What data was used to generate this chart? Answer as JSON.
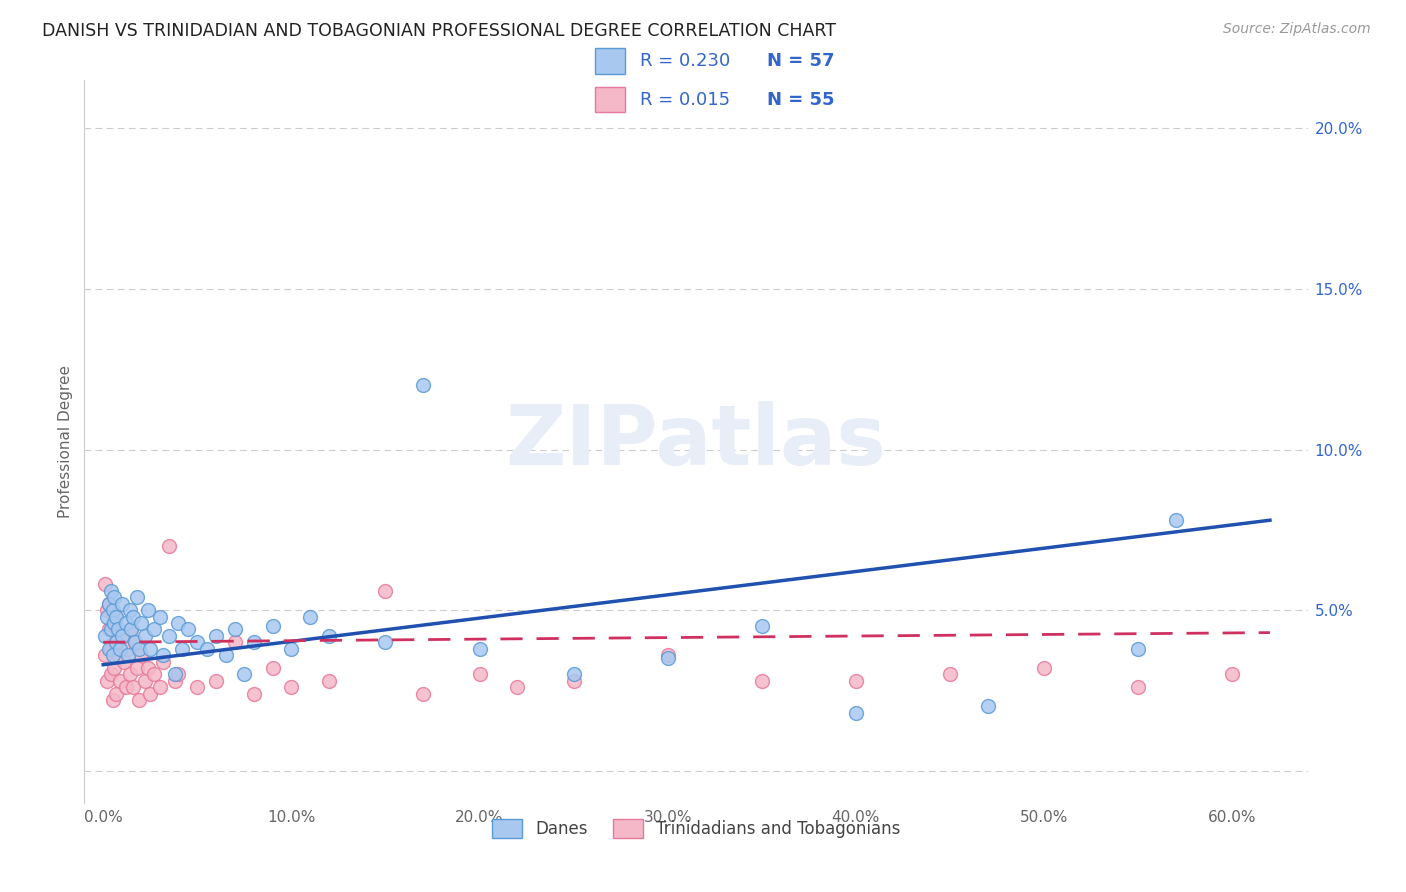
{
  "title": "DANISH VS TRINIDADIAN AND TOBAGONIAN PROFESSIONAL DEGREE CORRELATION CHART",
  "source": "Source: ZipAtlas.com",
  "ylabel": "Professional Degree",
  "x_ticks": [
    0.0,
    0.1,
    0.2,
    0.3,
    0.4,
    0.5,
    0.6
  ],
  "x_tick_labels": [
    "0.0%",
    "10.0%",
    "20.0%",
    "30.0%",
    "40.0%",
    "50.0%",
    "60.0%"
  ],
  "y_ticks": [
    0.0,
    0.05,
    0.1,
    0.15,
    0.2
  ],
  "y_tick_labels": [
    "",
    "5.0%",
    "10.0%",
    "15.0%",
    "20.0%"
  ],
  "xlim_min": -0.01,
  "xlim_max": 0.64,
  "ylim_min": -0.01,
  "ylim_max": 0.215,
  "danes_color": "#A8C8F0",
  "danes_edge_color": "#5B9BD5",
  "trinidadian_color": "#F4B8C8",
  "trinidadian_edge_color": "#E8789A",
  "danes_line_color": "#2050B0",
  "trinidadian_line_color": "#D03060",
  "danes_R": 0.23,
  "danes_N": 57,
  "trinidadian_R": 0.015,
  "trinidadian_N": 55,
  "legend_label_danes": "Danes",
  "legend_label_trinidadian": "Trinidadians and Tobagonians",
  "legend_text_color": "#3366CC",
  "background_color": "#FFFFFF",
  "grid_color": "#CCCCCC",
  "watermark": "ZIPatlas",
  "marker_size": 100,
  "danes_x": [
    0.001,
    0.002,
    0.003,
    0.003,
    0.004,
    0.004,
    0.005,
    0.005,
    0.006,
    0.006,
    0.007,
    0.007,
    0.008,
    0.009,
    0.01,
    0.01,
    0.012,
    0.013,
    0.014,
    0.015,
    0.016,
    0.017,
    0.018,
    0.019,
    0.02,
    0.022,
    0.024,
    0.025,
    0.027,
    0.03,
    0.032,
    0.035,
    0.038,
    0.04,
    0.042,
    0.045,
    0.05,
    0.055,
    0.06,
    0.065,
    0.07,
    0.075,
    0.08,
    0.09,
    0.1,
    0.11,
    0.12,
    0.15,
    0.17,
    0.2,
    0.25,
    0.3,
    0.35,
    0.4,
    0.47,
    0.55,
    0.57
  ],
  "danes_y": [
    0.042,
    0.048,
    0.052,
    0.038,
    0.044,
    0.056,
    0.05,
    0.036,
    0.046,
    0.054,
    0.04,
    0.048,
    0.044,
    0.038,
    0.052,
    0.042,
    0.046,
    0.036,
    0.05,
    0.044,
    0.048,
    0.04,
    0.054,
    0.038,
    0.046,
    0.042,
    0.05,
    0.038,
    0.044,
    0.048,
    0.036,
    0.042,
    0.03,
    0.046,
    0.038,
    0.044,
    0.04,
    0.038,
    0.042,
    0.036,
    0.044,
    0.03,
    0.04,
    0.045,
    0.038,
    0.048,
    0.042,
    0.04,
    0.12,
    0.038,
    0.03,
    0.035,
    0.045,
    0.018,
    0.02,
    0.038,
    0.078
  ],
  "trinidadian_x": [
    0.001,
    0.001,
    0.002,
    0.002,
    0.003,
    0.003,
    0.004,
    0.004,
    0.005,
    0.005,
    0.006,
    0.006,
    0.007,
    0.007,
    0.008,
    0.009,
    0.01,
    0.011,
    0.012,
    0.013,
    0.014,
    0.015,
    0.016,
    0.017,
    0.018,
    0.019,
    0.02,
    0.022,
    0.024,
    0.025,
    0.027,
    0.03,
    0.032,
    0.035,
    0.038,
    0.04,
    0.05,
    0.06,
    0.07,
    0.08,
    0.09,
    0.1,
    0.12,
    0.15,
    0.17,
    0.2,
    0.22,
    0.25,
    0.3,
    0.35,
    0.4,
    0.45,
    0.5,
    0.55,
    0.6
  ],
  "trinidadian_y": [
    0.058,
    0.036,
    0.05,
    0.028,
    0.044,
    0.052,
    0.038,
    0.03,
    0.046,
    0.022,
    0.04,
    0.032,
    0.048,
    0.024,
    0.036,
    0.028,
    0.042,
    0.034,
    0.026,
    0.038,
    0.03,
    0.044,
    0.026,
    0.04,
    0.032,
    0.022,
    0.036,
    0.028,
    0.032,
    0.024,
    0.03,
    0.026,
    0.034,
    0.07,
    0.028,
    0.03,
    0.026,
    0.028,
    0.04,
    0.024,
    0.032,
    0.026,
    0.028,
    0.056,
    0.024,
    0.03,
    0.026,
    0.028,
    0.036,
    0.028,
    0.028,
    0.03,
    0.032,
    0.026,
    0.03
  ]
}
